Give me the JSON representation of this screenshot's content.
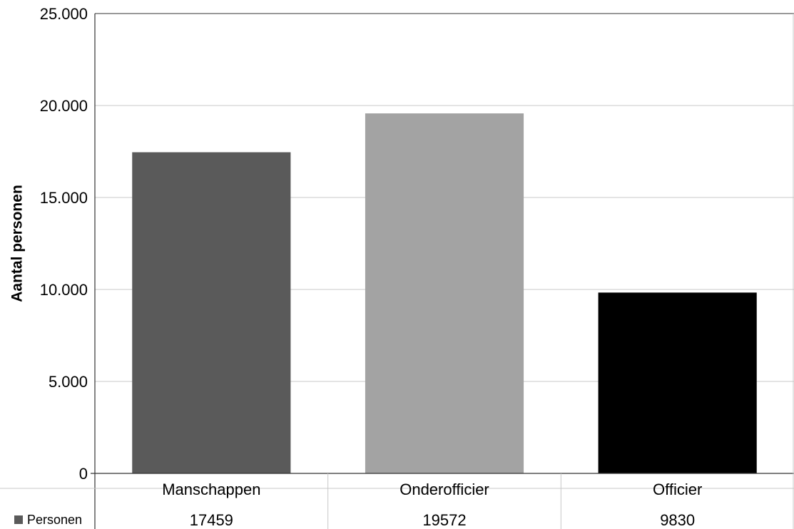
{
  "chart_data": {
    "type": "bar",
    "categories": [
      "Manschappen",
      "Onderofficier",
      "Officier"
    ],
    "series": [
      {
        "name": "Personen",
        "values": [
          17459,
          19572,
          9830
        ]
      }
    ],
    "value_labels": [
      "17459",
      "19572",
      "9830"
    ],
    "bar_colors": [
      "#5a5a5a",
      "#a3a3a3",
      "#000000"
    ],
    "ylabel": "Aantal personen",
    "xlabel": "",
    "ylim": [
      0,
      25000
    ],
    "yticks": [
      0,
      5000,
      10000,
      15000,
      20000,
      25000
    ],
    "ytick_labels": [
      "0",
      "5.000",
      "10.000",
      "15.000",
      "20.000",
      "25.000"
    ],
    "grid": true,
    "legend": "data-table"
  }
}
